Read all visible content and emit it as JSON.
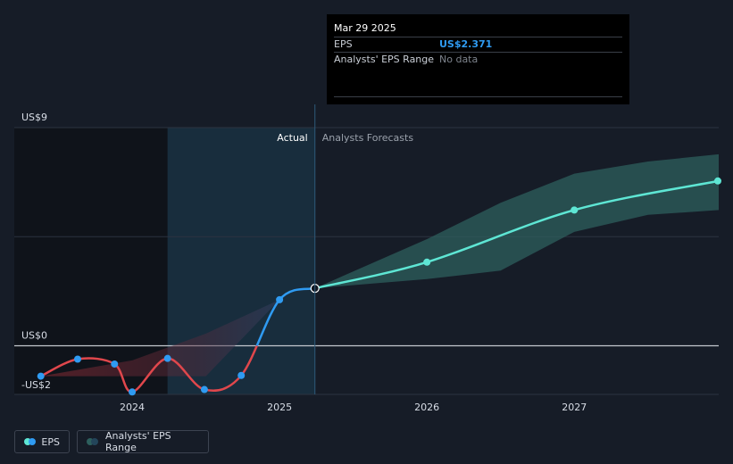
{
  "chart_data": {
    "type": "line",
    "y_ticks": [
      {
        "label": "US$9",
        "value": 9
      },
      {
        "label": "US$0",
        "value": 0
      },
      {
        "label": "-US$2",
        "value": -2
      }
    ],
    "ylim": [
      -2,
      9
    ],
    "x_ticks": [
      {
        "label": "2024",
        "value": 2024.0
      },
      {
        "label": "2025",
        "value": 2025.0
      },
      {
        "label": "2026",
        "value": 2026.0
      },
      {
        "label": "2027",
        "value": 2027.0
      }
    ],
    "xlim": [
      2023.2,
      2027.98
    ],
    "divider_x": 2025.24,
    "highlight_start_x": 2024.24,
    "section_labels": {
      "actual": "Actual",
      "forecast": "Analysts Forecasts"
    },
    "series": [
      {
        "name": "EPS",
        "points": [
          {
            "x": 2023.38,
            "y": -1.25
          },
          {
            "x": 2023.63,
            "y": -0.55
          },
          {
            "x": 2023.88,
            "y": -0.75
          },
          {
            "x": 2024.0,
            "y": -1.9
          },
          {
            "x": 2024.24,
            "y": -0.52
          },
          {
            "x": 2024.49,
            "y": -1.8
          },
          {
            "x": 2024.74,
            "y": -1.22
          },
          {
            "x": 2025.0,
            "y": 1.9
          },
          {
            "x": 2025.24,
            "y": 2.371
          }
        ]
      },
      {
        "name": "EPS Forecast",
        "points": [
          {
            "x": 2025.24,
            "y": 2.371
          },
          {
            "x": 2026.0,
            "y": 3.45
          },
          {
            "x": 2027.0,
            "y": 5.6
          },
          {
            "x": 2027.98,
            "y": 6.8
          }
        ]
      },
      {
        "name": "Analysts' EPS Range",
        "x": [
          2025.24,
          2026.0,
          2026.5,
          2027.0,
          2027.5,
          2027.98
        ],
        "high": [
          2.371,
          4.4,
          5.9,
          7.1,
          7.6,
          7.9
        ],
        "low": [
          2.371,
          2.75,
          3.1,
          4.7,
          5.4,
          5.6
        ]
      },
      {
        "name": "Past range",
        "x": [
          2023.38,
          2024.0,
          2024.5,
          2025.0,
          2025.24
        ],
        "high": [
          -1.25,
          -0.6,
          0.5,
          1.9,
          2.371
        ],
        "low": [
          -1.25,
          -1.25,
          -1.25,
          1.9,
          2.371
        ]
      }
    ],
    "highlight_point": {
      "x": 2025.24,
      "y": 2.371
    },
    "colors": {
      "background": "#161c27",
      "negative": "#e0474c",
      "positive": "#2f9bf2",
      "forecast": "#5ee6d4",
      "range": "#2d5f5d",
      "zero_line": "#c4c8cf"
    }
  },
  "tooltip": {
    "date": "Mar 29 2025",
    "eps_label": "EPS",
    "eps_value": "US$2.371",
    "range_label": "Analysts' EPS Range",
    "range_value": "No data"
  },
  "legend": {
    "eps_label": "EPS",
    "range_label": "Analysts' EPS Range"
  }
}
